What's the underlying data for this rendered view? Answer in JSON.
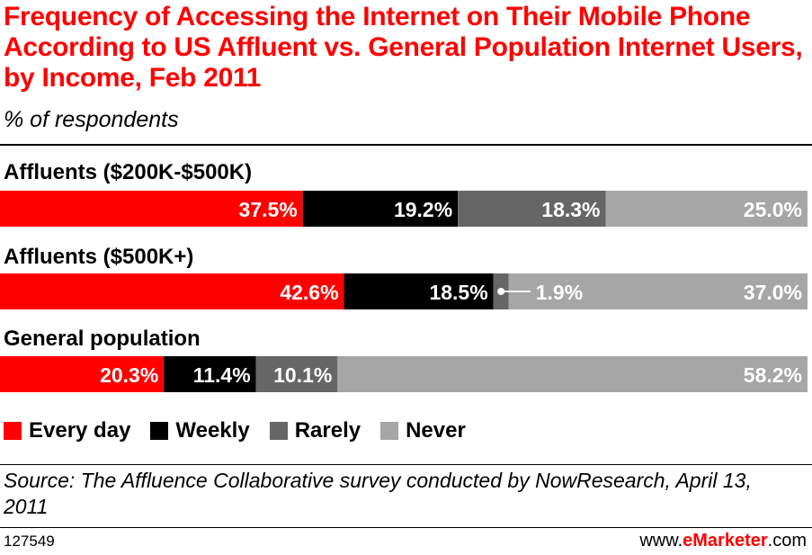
{
  "title": "Frequency of Accessing the Internet on Their Mobile Phone According to US Affluent vs. General Population Internet Users, by Income, Feb 2011",
  "subtitle": "% of respondents",
  "source": "Source: The Affluence Collaborative survey conducted by NowResearch, April 13, 2011",
  "chart_id": "127549",
  "brand": {
    "prefix": "www.",
    "name": "eMarketer",
    "suffix": ".com"
  },
  "colors": {
    "Every day": "#ff0000",
    "Weekly": "#000000",
    "Rarely": "#666666",
    "Never": "#a6a6a6"
  },
  "chart_data": {
    "type": "bar",
    "stacked": true,
    "orientation": "horizontal",
    "unit": "%",
    "categories": [
      "Affluents ($200K-$500K)",
      "Affluents ($500K+)",
      "General population"
    ],
    "series": [
      {
        "name": "Every day",
        "values": [
          37.5,
          42.6,
          20.3
        ]
      },
      {
        "name": "Weekly",
        "values": [
          19.2,
          18.5,
          11.4
        ]
      },
      {
        "name": "Rarely",
        "values": [
          18.3,
          1.9,
          10.1
        ]
      },
      {
        "name": "Never",
        "values": [
          25.0,
          37.0,
          58.2
        ]
      }
    ],
    "data_labels": [
      [
        "37.5%",
        "19.2%",
        "18.3%",
        "25.0%"
      ],
      [
        "42.6%",
        "18.5%",
        "1.9%",
        "37.0%"
      ],
      [
        "20.3%",
        "11.4%",
        "10.1%",
        "58.2%"
      ]
    ],
    "legend": [
      "Every day",
      "Weekly",
      "Rarely",
      "Never"
    ],
    "legend_position": "bottom",
    "grid": false
  }
}
